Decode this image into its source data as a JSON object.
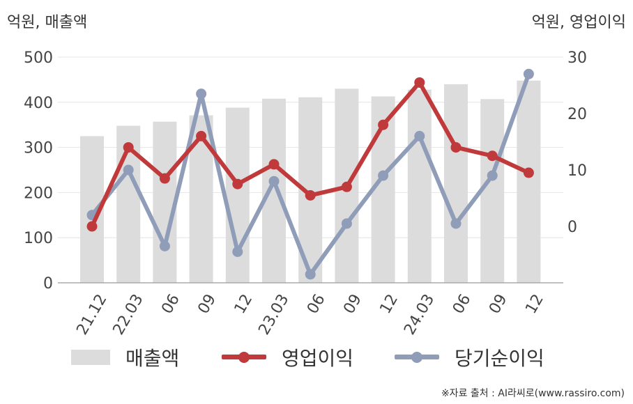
{
  "units": {
    "left": "억원, 매출액",
    "right": "억원, 영업이익"
  },
  "source": "※자료 출처 : AI라씨로(www.rassiro.com)",
  "colors": {
    "bar": "#dcdcdc",
    "operating": "#c0393b",
    "net": "#8f9db8",
    "grid": "#e4e4e4",
    "axis": "#aaaaaa"
  },
  "chart_data": {
    "type": "bar+line",
    "categories": [
      "21.12",
      "22.03",
      "06",
      "09",
      "12",
      "23.03",
      "06",
      "09",
      "12",
      "24.03",
      "06",
      "09",
      "12"
    ],
    "left_axis": {
      "label": "억원, 매출액",
      "ylim": [
        0,
        500
      ],
      "ticks": [
        0,
        100,
        200,
        300,
        400,
        500
      ]
    },
    "right_axis": {
      "label": "억원, 영업이익",
      "ylim": [
        -10,
        30
      ],
      "ticks": [
        0,
        10,
        20,
        30
      ]
    },
    "grid": true,
    "legend_position": "bottom",
    "series": [
      {
        "name": "매출액",
        "type": "bar",
        "axis": "left",
        "values": [
          325,
          348,
          357,
          371,
          388,
          408,
          411,
          430,
          413,
          428,
          440,
          407,
          448
        ]
      },
      {
        "name": "영업이익",
        "type": "line",
        "axis": "right",
        "values": [
          0,
          14,
          8.5,
          16,
          7.5,
          11,
          5.5,
          7,
          18,
          25.5,
          14,
          12.5,
          9.5
        ]
      },
      {
        "name": "당기순이익",
        "type": "line",
        "axis": "right",
        "values": [
          2,
          10,
          -3.5,
          23.5,
          -4.5,
          8,
          -8.5,
          0.5,
          9,
          16,
          0.5,
          9,
          27
        ]
      }
    ]
  }
}
